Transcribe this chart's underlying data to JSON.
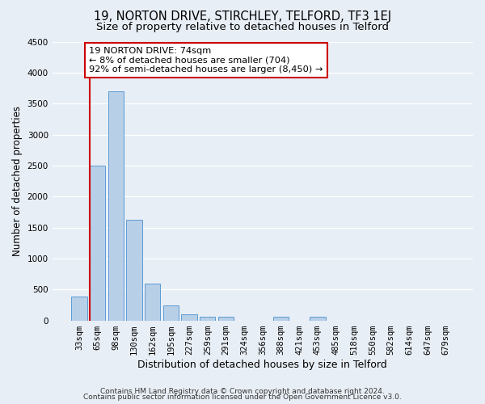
{
  "title": "19, NORTON DRIVE, STIRCHLEY, TELFORD, TF3 1EJ",
  "subtitle": "Size of property relative to detached houses in Telford",
  "xlabel": "Distribution of detached houses by size in Telford",
  "ylabel": "Number of detached properties",
  "bar_labels": [
    "33sqm",
    "65sqm",
    "98sqm",
    "130sqm",
    "162sqm",
    "195sqm",
    "227sqm",
    "259sqm",
    "291sqm",
    "324sqm",
    "356sqm",
    "388sqm",
    "421sqm",
    "453sqm",
    "485sqm",
    "518sqm",
    "550sqm",
    "582sqm",
    "614sqm",
    "647sqm",
    "679sqm"
  ],
  "bar_values": [
    380,
    2500,
    3700,
    1630,
    600,
    240,
    100,
    60,
    55,
    0,
    0,
    55,
    0,
    60,
    0,
    0,
    0,
    0,
    0,
    0,
    0
  ],
  "bar_color": "#b8cfe8",
  "bar_edge_color": "#5b9bd5",
  "vline_x": 0.5,
  "vline_color": "#cc0000",
  "ylim": [
    0,
    4500
  ],
  "yticks": [
    0,
    500,
    1000,
    1500,
    2000,
    2500,
    3000,
    3500,
    4000,
    4500
  ],
  "annotation_title": "19 NORTON DRIVE: 74sqm",
  "annotation_line1": "← 8% of detached houses are smaller (704)",
  "annotation_line2": "92% of semi-detached houses are larger (8,450) →",
  "annotation_box_color": "#ffffff",
  "annotation_box_edge": "#cc0000",
  "footer_line1": "Contains HM Land Registry data © Crown copyright and database right 2024.",
  "footer_line2": "Contains public sector information licensed under the Open Government Licence v3.0.",
  "bg_color": "#e8eef5",
  "plot_bg_color": "#e8eef5",
  "grid_color": "#ffffff",
  "title_fontsize": 10.5,
  "subtitle_fontsize": 9.5,
  "xlabel_fontsize": 9,
  "ylabel_fontsize": 8.5,
  "tick_fontsize": 7.5,
  "footer_fontsize": 6.5
}
